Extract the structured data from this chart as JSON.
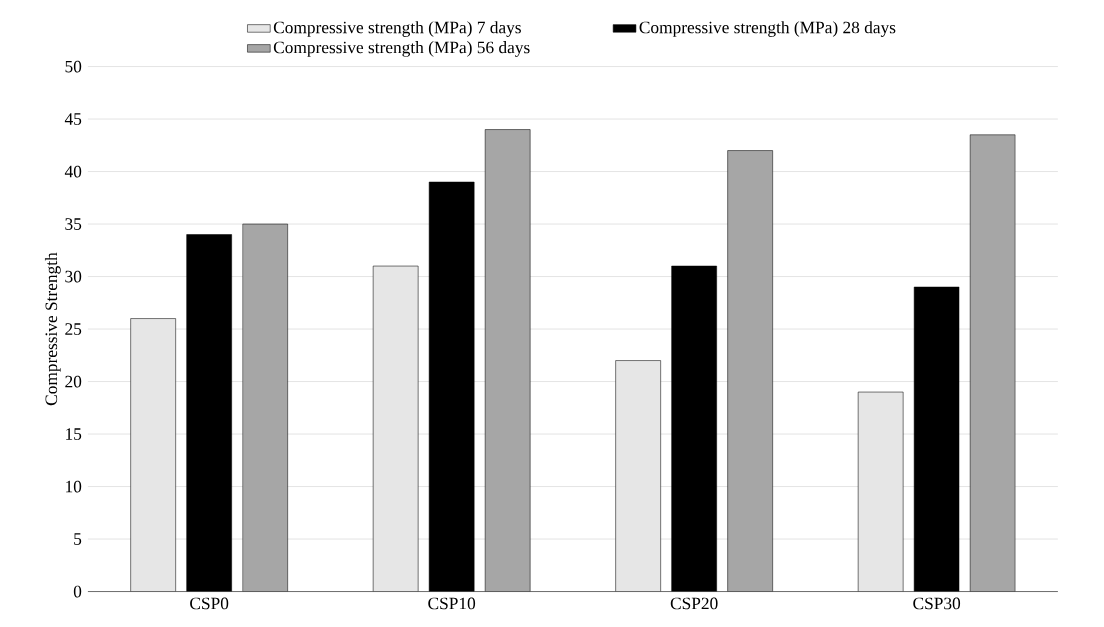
{
  "chart_data": {
    "type": "bar",
    "ylabel": "Compressive Strength",
    "categories": [
      "CSP0",
      "CSP10",
      "CSP20",
      "CSP30"
    ],
    "series": [
      {
        "name": "Compressive strength (MPa) 7 days",
        "color": "#e6e6e6",
        "values": [
          26,
          31,
          22,
          19
        ]
      },
      {
        "name": "Compressive strength (MPa) 28 days",
        "color": "#000000",
        "values": [
          34,
          39,
          31,
          29
        ]
      },
      {
        "name": "Compressive strength (MPa) 56 days",
        "color": "#a6a6a6",
        "values": [
          35,
          44,
          42,
          43.5
        ]
      }
    ],
    "ylim": [
      0,
      50
    ],
    "yticks": [
      0,
      5,
      10,
      15,
      20,
      25,
      30,
      35,
      40,
      45,
      50
    ],
    "grid": "y",
    "legend": "top"
  }
}
